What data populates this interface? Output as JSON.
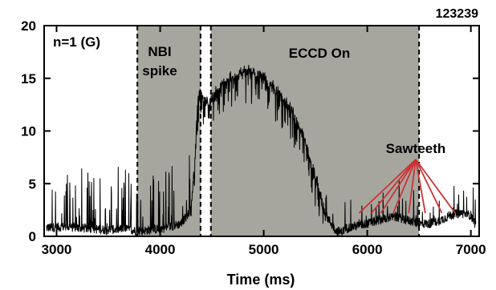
{
  "chart_data": {
    "type": "line",
    "shot_number": "123239",
    "xlabel": "Time (ms)",
    "ylabel": "",
    "xlim": [
      2880,
      7080
    ],
    "ylim": [
      0,
      20
    ],
    "xticks": [
      3000,
      4000,
      5000,
      6000,
      7000
    ],
    "yticks": [
      0,
      5,
      10,
      15,
      20
    ],
    "grid": false,
    "series": [
      {
        "name": "n=1 (G)",
        "color": "#000000",
        "x": [
          2900,
          3050,
          3200,
          3350,
          3500,
          3650,
          3780,
          3900,
          4050,
          4200,
          4300,
          4330,
          4360,
          4390,
          4420,
          4470,
          4520,
          4600,
          4700,
          4800,
          4850,
          4900,
          5000,
          5100,
          5200,
          5300,
          5400,
          5500,
          5600,
          5700,
          5750,
          5800,
          5900,
          6000,
          6100,
          6200,
          6300,
          6400,
          6500,
          6600,
          6700,
          6800,
          6900,
          7000,
          7050
        ],
        "values": [
          0.8,
          0.9,
          0.8,
          0.7,
          0.6,
          0.7,
          0.5,
          0.6,
          0.8,
          1.2,
          2.5,
          6.5,
          12.5,
          13.8,
          13.0,
          12.5,
          13.2,
          14.5,
          15.0,
          15.5,
          15.8,
          15.5,
          15.0,
          14.0,
          12.8,
          11.2,
          9.0,
          5.5,
          2.0,
          0.5,
          0.4,
          0.8,
          1.0,
          1.2,
          1.5,
          1.8,
          1.8,
          1.5,
          1.2,
          1.2,
          1.5,
          2.0,
          2.2,
          2.0,
          1.0
        ]
      }
    ],
    "shaded_regions": [
      {
        "label": "NBI\nspike",
        "x_start": 3780,
        "x_end": 4390,
        "color": "#a6a69f"
      },
      {
        "label": "ECCD On",
        "x_start": 4490,
        "x_end": 6500,
        "color": "#a6a69f"
      }
    ],
    "dashed_lines_x": [
      3780,
      4390,
      4490,
      6500
    ],
    "annotations": {
      "mode_label": "n=1 (G)",
      "nbi_line1": "NBI",
      "nbi_line2": "spike",
      "eccd": "ECCD On",
      "sawteeth": "Sawteeth",
      "sawtooth_times": [
        5920,
        6040,
        6130,
        6250,
        6400,
        6560,
        6720,
        6850
      ],
      "arrow_color": "#cc3333"
    }
  }
}
